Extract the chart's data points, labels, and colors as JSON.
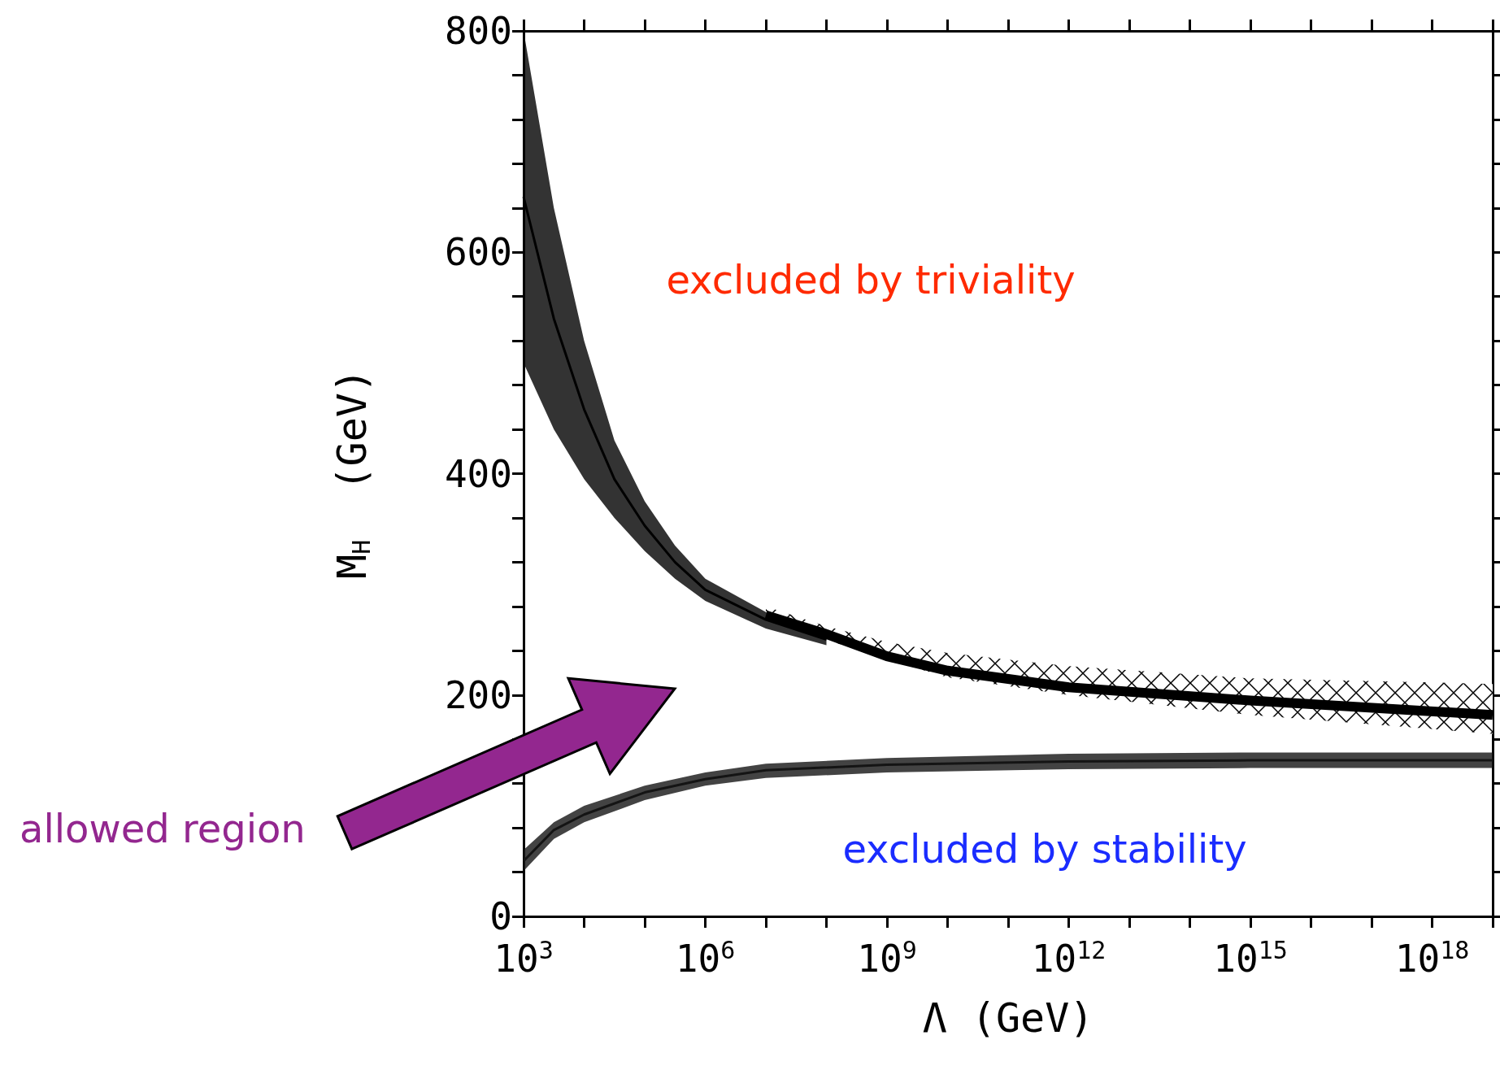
{
  "chart_data": {
    "type": "line",
    "xlabel": "Λ (GeV)",
    "ylabel": "M$_{H}$  (GeV)",
    "annotations": [
      "excluded by triviality",
      "excluded by stability",
      "allowed region"
    ],
    "log": "x",
    "xlim": [
      1000,
      1e+19
    ],
    "ylim": [
      0,
      800
    ],
    "xticks": [
      {
        "value": 1000,
        "label": "10$^{3}$"
      },
      {
        "value": 10000.0,
        "label": null
      },
      {
        "value": 100000.0,
        "label": null
      },
      {
        "value": 1000000.0,
        "label": "10$^{6}$"
      },
      {
        "value": 10000000.0,
        "label": null
      },
      {
        "value": 100000000.0,
        "label": null
      },
      {
        "value": 1000000000.0,
        "label": "10$^{9}$"
      },
      {
        "value": 10000000000.0,
        "label": null
      },
      {
        "value": 100000000000.0,
        "label": null
      },
      {
        "value": 1000000000000.0,
        "label": "10$^{12}$"
      },
      {
        "value": 10000000000000.0,
        "label": null
      },
      {
        "value": 100000000000000.0,
        "label": null
      },
      {
        "value": 1000000000000000.0,
        "label": "10$^{15}$"
      },
      {
        "value": 1e+16,
        "label": null
      },
      {
        "value": 1e+17,
        "label": null
      },
      {
        "value": 1e+18,
        "label": "10$^{18}$"
      },
      {
        "value": 1e+19,
        "label": null
      }
    ],
    "yticks": [
      0,
      {
        "value": 40,
        "label": null
      },
      {
        "value": 80,
        "label": null
      },
      {
        "value": 120,
        "label": null
      },
      {
        "value": 160,
        "label": null
      },
      200,
      {
        "value": 240,
        "label": null
      },
      {
        "value": 280,
        "label": null
      },
      {
        "value": 320,
        "label": null
      },
      {
        "value": 360,
        "label": null
      },
      400,
      {
        "value": 440,
        "label": null
      },
      {
        "value": 480,
        "label": null
      },
      {
        "value": 520,
        "label": null
      },
      {
        "value": 560,
        "label": null
      },
      600,
      {
        "value": 640,
        "label": null
      },
      {
        "value": 680,
        "label": null
      },
      {
        "value": 720,
        "label": null
      },
      {
        "value": 760,
        "label": null
      },
      800
    ],
    "series": [
      {
        "color": "#000000",
        "x": [
          10000000.0,
          100000000.0,
          1000000000.0,
          10000000000.0,
          1000000000000.0,
          1000000000000000.0,
          1e+19
        ],
        "values": [
          272,
          255,
          235,
          222,
          207,
          195,
          182
        ],
        "upper": [
          280,
          262,
          248,
          238,
          226,
          215,
          210
        ],
        "lower": [
          268,
          250,
          232,
          216,
          200,
          182,
          165
        ]
      },
      {
        "color": "#000000",
        "x": [
          1000,
          3162,
          10000.0,
          31623,
          100000.0,
          316228,
          1000000.0,
          10000000.0,
          100000000.0
        ],
        "values": [
          650,
          540,
          458,
          395,
          353,
          320,
          295,
          268,
          250
        ],
        "upper": [
          800,
          640,
          520,
          430,
          375,
          335,
          305,
          275,
          255
        ],
        "lower": [
          500,
          440,
          395,
          360,
          330,
          305,
          285,
          260,
          245
        ]
      },
      {
        "color": "#141414",
        "x": [
          1000,
          3162,
          10000.0,
          100000.0,
          1000000.0,
          10000000.0,
          1000000000.0,
          1000000000000.0,
          1000000000000000.0,
          1e+19
        ],
        "values": [
          50,
          78,
          92,
          112,
          124,
          132,
          137,
          140,
          141,
          141
        ],
        "upper": [
          60,
          85,
          100,
          118,
          130,
          138,
          143,
          147,
          148,
          148
        ],
        "lower": [
          41,
          70,
          85,
          105,
          118,
          125,
          130,
          133,
          134,
          134
        ]
      }
    ]
  }
}
